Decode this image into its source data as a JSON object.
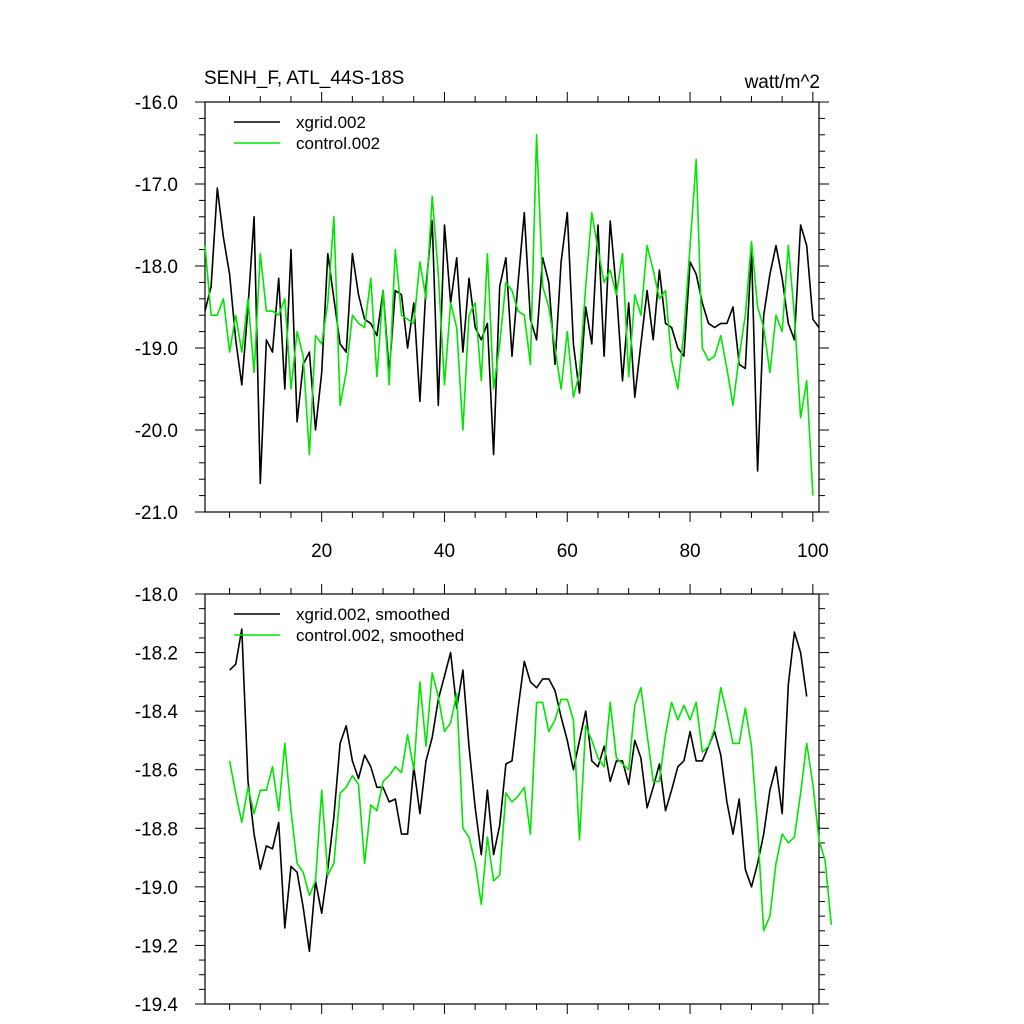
{
  "chart_data": [
    {
      "type": "line",
      "title": "SENH_F, ATL_44S-18S",
      "units": "watt/m^2",
      "xlabel": "",
      "ylabel": "",
      "xlim": [
        1,
        101
      ],
      "ylim": [
        -21.0,
        -16.0
      ],
      "yticks": [
        "-16.0",
        "-17.0",
        "-18.0",
        "-19.0",
        "-20.0",
        "-21.0"
      ],
      "xticks": [
        "20",
        "40",
        "60",
        "80",
        "100"
      ],
      "legend": "top-left",
      "series": [
        {
          "name": "xgrid.002",
          "color": "#000000",
          "x_start": 1,
          "values": [
            -18.55,
            -18.25,
            -17.05,
            -17.65,
            -18.1,
            -18.9,
            -19.45,
            -18.5,
            -17.4,
            -20.65,
            -18.9,
            -19.05,
            -18.15,
            -19.5,
            -17.8,
            -19.9,
            -19.2,
            -19.05,
            -20.0,
            -19.3,
            -17.85,
            -18.4,
            -18.95,
            -19.05,
            -17.85,
            -18.35,
            -18.65,
            -18.7,
            -18.85,
            -18.3,
            -19.3,
            -18.3,
            -18.35,
            -19.0,
            -18.45,
            -19.65,
            -18.25,
            -17.45,
            -19.7,
            -17.5,
            -18.45,
            -17.9,
            -19.05,
            -18.15,
            -18.75,
            -18.9,
            -18.7,
            -20.3,
            -18.25,
            -17.9,
            -19.1,
            -18.2,
            -17.35,
            -18.65,
            -18.9,
            -17.9,
            -18.2,
            -19.2,
            -17.95,
            -17.35,
            -18.95,
            -19.55,
            -18.5,
            -18.95,
            -17.5,
            -19.1,
            -17.45,
            -18.3,
            -19.4,
            -18.45,
            -19.6,
            -18.95,
            -18.3,
            -18.9,
            -18.05,
            -18.7,
            -18.75,
            -19.0,
            -19.1,
            -17.95,
            -18.1,
            -18.45,
            -18.7,
            -18.75,
            -18.7,
            -18.7,
            -18.5,
            -19.2,
            -19.25,
            -17.8,
            -20.5,
            -18.6,
            -18.1,
            -17.75,
            -18.15,
            -18.7,
            -18.9,
            -17.5,
            -17.75,
            -18.65,
            -18.75
          ]
        },
        {
          "name": "control.002",
          "color": "#00e600",
          "x_start": 1,
          "values": [
            -17.75,
            -18.6,
            -18.6,
            -18.4,
            -19.05,
            -18.6,
            -19.05,
            -18.4,
            -19.3,
            -17.85,
            -18.55,
            -18.55,
            -18.6,
            -18.4,
            -19.5,
            -18.8,
            -19.1,
            -20.3,
            -18.85,
            -18.95,
            -18.45,
            -17.4,
            -19.7,
            -19.3,
            -18.6,
            -18.7,
            -18.75,
            -18.15,
            -19.35,
            -18.3,
            -19.45,
            -17.8,
            -18.6,
            -18.65,
            -18.7,
            -17.95,
            -18.4,
            -17.15,
            -18.1,
            -19.45,
            -18.45,
            -18.75,
            -20.0,
            -18.6,
            -18.45,
            -19.4,
            -17.85,
            -19.5,
            -18.95,
            -18.2,
            -18.3,
            -18.55,
            -18.6,
            -19.2,
            -16.4,
            -18.25,
            -18.5,
            -19.0,
            -19.5,
            -18.8,
            -19.6,
            -19.3,
            -18.25,
            -17.35,
            -17.8,
            -18.2,
            -18.05,
            -18.35,
            -17.85,
            -19.35,
            -18.35,
            -18.6,
            -17.75,
            -18.05,
            -18.4,
            -18.3,
            -19.15,
            -19.5,
            -18.8,
            -17.75,
            -16.7,
            -19.0,
            -19.15,
            -19.1,
            -18.85,
            -19.25,
            -19.7,
            -19.1,
            -18.6,
            -17.7,
            -18.5,
            -18.75,
            -19.3,
            -18.6,
            -18.8,
            -17.75,
            -18.6,
            -19.85,
            -19.4,
            -20.8
          ]
        }
      ]
    },
    {
      "type": "line",
      "title": "",
      "xlabel": "",
      "ylabel": "",
      "xlim": [
        1,
        101
      ],
      "ylim": [
        -19.4,
        -18.0
      ],
      "yticks": [
        "-18.0",
        "-18.2",
        "-18.4",
        "-18.6",
        "-18.8",
        "-19.0",
        "-19.2",
        "-19.4"
      ],
      "legend": "top-left",
      "series": [
        {
          "name": "xgrid.002, smoothed",
          "color": "#000000",
          "x_start": 5,
          "values": [
            -18.26,
            -18.24,
            -18.12,
            -18.64,
            -18.82,
            -18.94,
            -18.86,
            -18.87,
            -18.78,
            -19.14,
            -18.93,
            -18.95,
            -19.07,
            -19.22,
            -18.98,
            -19.09,
            -18.94,
            -18.76,
            -18.51,
            -18.45,
            -18.57,
            -18.63,
            -18.55,
            -18.59,
            -18.66,
            -18.66,
            -18.71,
            -18.7,
            -18.82,
            -18.82,
            -18.59,
            -18.75,
            -18.57,
            -18.49,
            -18.36,
            -18.28,
            -18.2,
            -18.39,
            -18.26,
            -18.52,
            -18.73,
            -18.89,
            -18.67,
            -18.89,
            -18.79,
            -18.58,
            -18.57,
            -18.39,
            -18.23,
            -18.3,
            -18.32,
            -18.29,
            -18.29,
            -18.33,
            -18.42,
            -18.5,
            -18.6,
            -18.5,
            -18.4,
            -18.57,
            -18.59,
            -18.52,
            -18.64,
            -18.57,
            -18.57,
            -18.65,
            -18.5,
            -18.56,
            -18.73,
            -18.66,
            -18.58,
            -18.74,
            -18.67,
            -18.59,
            -18.57,
            -18.47,
            -18.57,
            -18.57,
            -18.52,
            -18.47,
            -18.55,
            -18.71,
            -18.82,
            -18.7,
            -18.94,
            -19.0,
            -18.92,
            -18.82,
            -18.67,
            -18.59,
            -18.75,
            -18.31,
            -18.13,
            -18.2,
            -18.35
          ]
        },
        {
          "name": "control.002, smoothed",
          "color": "#00e600",
          "x_start": 5,
          "values": [
            -18.57,
            -18.68,
            -18.78,
            -18.66,
            -18.75,
            -18.67,
            -18.67,
            -18.59,
            -18.74,
            -18.51,
            -18.74,
            -18.92,
            -18.95,
            -19.03,
            -18.98,
            -18.67,
            -18.96,
            -18.92,
            -18.68,
            -18.66,
            -18.62,
            -18.65,
            -18.92,
            -18.72,
            -18.74,
            -18.64,
            -18.62,
            -18.59,
            -18.61,
            -18.48,
            -18.6,
            -18.3,
            -18.52,
            -18.27,
            -18.35,
            -18.47,
            -18.44,
            -18.34,
            -18.8,
            -18.83,
            -18.92,
            -19.06,
            -18.83,
            -18.98,
            -18.96,
            -18.68,
            -18.71,
            -18.69,
            -18.66,
            -18.82,
            -18.37,
            -18.37,
            -18.47,
            -18.43,
            -18.36,
            -18.36,
            -18.43,
            -18.84,
            -18.45,
            -18.5,
            -18.56,
            -18.59,
            -18.37,
            -18.56,
            -18.58,
            -18.6,
            -18.38,
            -18.32,
            -18.48,
            -18.64,
            -18.64,
            -18.48,
            -18.37,
            -18.43,
            -18.38,
            -18.43,
            -18.37,
            -18.54,
            -18.52,
            -18.46,
            -18.32,
            -18.41,
            -18.51,
            -18.51,
            -18.39,
            -18.52,
            -18.8,
            -19.15,
            -19.1,
            -18.92,
            -18.82,
            -18.85,
            -18.83,
            -18.68,
            -18.51,
            -18.65,
            -18.84,
            -18.91,
            -19.13
          ]
        }
      ]
    }
  ]
}
